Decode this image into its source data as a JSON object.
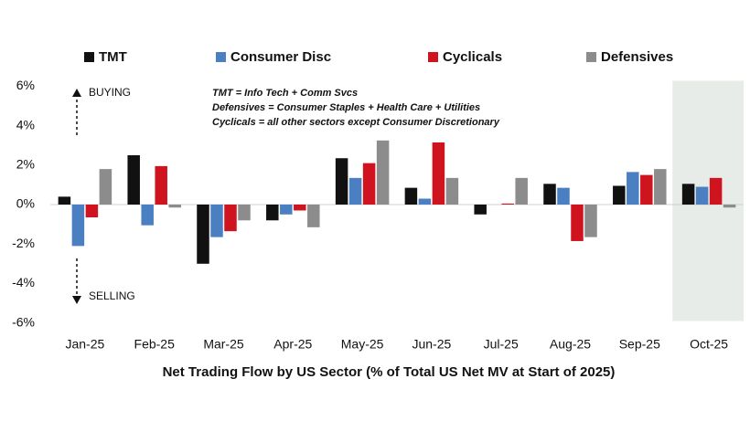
{
  "chart_data": {
    "type": "bar",
    "x_axis_title": "Net Trading Flow by US Sector (% of Total US Net MV at Start of 2025)",
    "annotations": {
      "buying": "BUYING",
      "selling": "SELLING",
      "notes": [
        "TMT = Info Tech + Comm Svcs",
        "Defensives = Consumer Staples + Health Care + Utilities",
        "Cyclicals = all other sectors except Consumer Discretionary"
      ]
    },
    "categories": [
      "Jan-25",
      "Feb-25",
      "Mar-25",
      "Apr-25",
      "May-25",
      "Jun-25",
      "Jul-25",
      "Aug-25",
      "Sep-25",
      "Oct-25"
    ],
    "series": [
      {
        "name": "TMT",
        "color": "#111111",
        "values": [
          0.4,
          2.5,
          -3.0,
          -0.8,
          2.35,
          0.85,
          -0.5,
          1.05,
          0.95,
          1.05
        ]
      },
      {
        "name": "Consumer Disc",
        "color": "#4a7fc1",
        "values": [
          -2.1,
          -1.05,
          -1.65,
          -0.5,
          1.35,
          0.3,
          0.0,
          0.85,
          1.65,
          0.9
        ]
      },
      {
        "name": "Cyclicals",
        "color": "#d0141f",
        "values": [
          -0.65,
          1.95,
          -1.35,
          -0.3,
          2.1,
          3.15,
          0.05,
          -1.85,
          1.5,
          1.35
        ]
      },
      {
        "name": "Defensives",
        "color": "#8c8c8c",
        "values": [
          1.8,
          -0.15,
          -0.8,
          -1.15,
          3.25,
          1.35,
          1.35,
          -1.65,
          1.8,
          -0.15
        ]
      }
    ],
    "ylim": [
      -6,
      6
    ],
    "yticks": [
      {
        "value": -6,
        "label": "-6%"
      },
      {
        "value": -4,
        "label": "-4%"
      },
      {
        "value": -2,
        "label": "-2%"
      },
      {
        "value": 0,
        "label": "0%"
      },
      {
        "value": 2,
        "label": "2%"
      },
      {
        "value": 4,
        "label": "4%"
      },
      {
        "value": 6,
        "label": "6%"
      }
    ],
    "legend_position": "top",
    "shaded_category_index": 9,
    "shade_color": "#e8ece9"
  }
}
